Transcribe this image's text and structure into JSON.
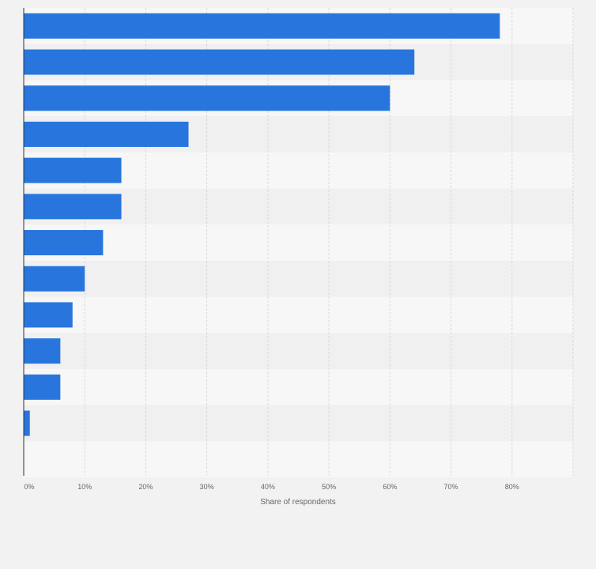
{
  "chart_data": {
    "type": "bar",
    "orientation": "horizontal",
    "title": "",
    "xlabel": "Share of respondents",
    "ylabel": "",
    "categories": [
      "",
      "",
      "",
      "",
      "",
      "",
      "",
      "",
      "",
      "",
      "",
      ""
    ],
    "values": [
      78,
      64,
      60,
      27,
      16,
      16,
      13,
      10,
      8,
      6,
      6,
      1
    ],
    "x_ticks": [
      "0%",
      "10%",
      "20%",
      "30%",
      "40%",
      "50%",
      "60%",
      "70%",
      "80%"
    ],
    "x_tick_values": [
      0,
      10,
      20,
      30,
      40,
      50,
      60,
      70,
      80
    ],
    "xlim": [
      0,
      90
    ],
    "grid": true,
    "legend": "none",
    "colors": {
      "bar": "#2876dd",
      "band_light": "#f7f7f7",
      "band_dark": "#f0f0f0",
      "grid": "#d9d9d9",
      "axis": "#333333",
      "text": "#666666",
      "background": "#f2f2f2"
    }
  }
}
